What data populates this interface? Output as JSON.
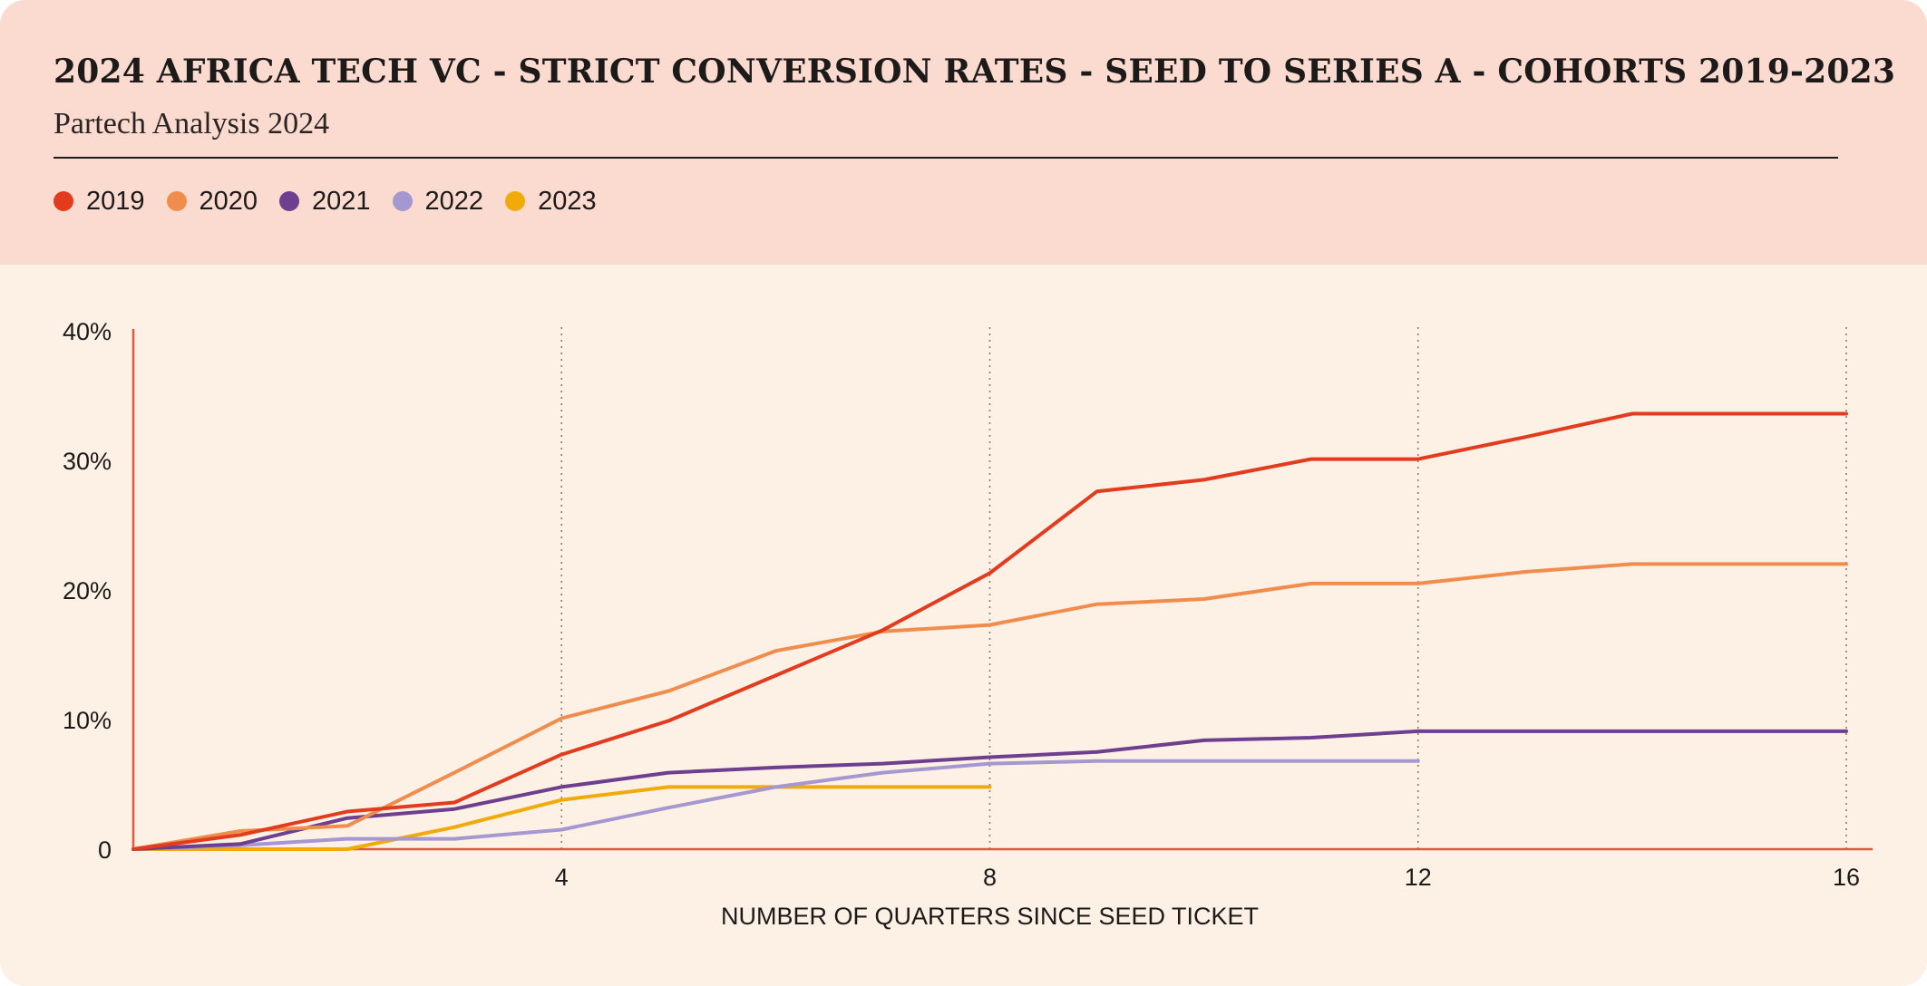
{
  "header": {
    "title": "2024 AFRICA TECH VC - STRICT CONVERSION RATES - SEED TO SERIES A - COHORTS 2019-2023",
    "subtitle": "Partech Analysis 2024"
  },
  "colors": {
    "header_bg": "#fbdad0",
    "plot_bg": "#fdf0e5",
    "axis": "#e05a3a"
  },
  "chart_data": {
    "type": "line",
    "title": "2024 AFRICA TECH VC - STRICT CONVERSION RATES - SEED TO SERIES A - COHORTS 2019-2023",
    "subtitle": "Partech Analysis 2024",
    "xlabel": "NUMBER OF QUARTERS SINCE SEED TICKET",
    "ylabel": "",
    "xlim": [
      0,
      16
    ],
    "ylim": [
      0,
      40
    ],
    "x_ticks": [
      {
        "value": 4,
        "label": "4"
      },
      {
        "value": 8,
        "label": "8"
      },
      {
        "value": 12,
        "label": "12"
      },
      {
        "value": 16,
        "label": "16"
      }
    ],
    "y_ticks": [
      {
        "value": 0,
        "label": "0"
      },
      {
        "value": 10,
        "label": "10%"
      },
      {
        "value": 20,
        "label": "20%"
      },
      {
        "value": 30,
        "label": "30%"
      },
      {
        "value": 40,
        "label": "40%"
      }
    ],
    "grid": "vertical dotted at x ticks",
    "legend_position": "top-left",
    "series": [
      {
        "name": "2019",
        "color": "#e23b1e",
        "x": [
          0,
          1,
          2,
          3,
          4,
          5,
          6,
          7,
          8,
          9,
          10,
          11,
          12,
          13,
          14,
          15,
          16
        ],
        "y": [
          0,
          1.1,
          2.9,
          3.6,
          7.3,
          9.9,
          13.4,
          16.9,
          21.3,
          27.6,
          28.5,
          30.1,
          30.1,
          31.8,
          33.6,
          33.6,
          33.6
        ]
      },
      {
        "name": "2020",
        "color": "#f08d4c",
        "x": [
          0,
          1,
          2,
          3,
          4,
          5,
          6,
          7,
          8,
          9,
          10,
          11,
          12,
          13,
          14,
          15,
          16
        ],
        "y": [
          0,
          1.4,
          1.8,
          5.9,
          10.1,
          12.2,
          15.3,
          16.8,
          17.3,
          18.9,
          19.3,
          20.5,
          20.5,
          21.4,
          22.0,
          22.0,
          22.0
        ]
      },
      {
        "name": "2021",
        "color": "#6d3f8e",
        "x": [
          0,
          1,
          2,
          3,
          4,
          5,
          6,
          7,
          8,
          9,
          10,
          11,
          12,
          13,
          14,
          15,
          16
        ],
        "y": [
          0,
          0.4,
          2.4,
          3.1,
          4.8,
          5.9,
          6.3,
          6.6,
          7.1,
          7.5,
          8.4,
          8.6,
          9.1,
          9.1,
          9.1,
          9.1,
          9.1
        ]
      },
      {
        "name": "2022",
        "color": "#a597d0",
        "x": [
          0,
          1,
          2,
          3,
          4,
          5,
          6,
          7,
          8,
          9,
          10,
          11,
          12
        ],
        "y": [
          0,
          0.3,
          0.8,
          0.8,
          1.5,
          3.2,
          4.8,
          5.9,
          6.6,
          6.8,
          6.8,
          6.8,
          6.8
        ]
      },
      {
        "name": "2023",
        "color": "#f0aa0a",
        "x": [
          0,
          1,
          2,
          3,
          4,
          5,
          6,
          7,
          8
        ],
        "y": [
          0,
          0,
          0,
          1.7,
          3.8,
          4.8,
          4.8,
          4.8,
          4.8
        ]
      }
    ]
  }
}
